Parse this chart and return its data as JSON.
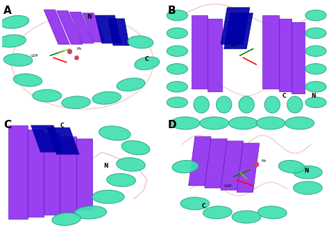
{
  "figure_width": 4.74,
  "figure_height": 3.32,
  "dpi": 100,
  "panels": [
    "A",
    "B",
    "C",
    "D"
  ],
  "background_color": "#ffffff",
  "panel_label_fontsize": 11,
  "panel_label_fontweight": "bold",
  "panel_label_color": "black",
  "helix_color": "#40e0b0",
  "helix_edge": "#20a080",
  "purple_color": "#9030f0",
  "purple_edge": "#6010c0",
  "blue_color": "#0000aa",
  "blue_edge": "#000088",
  "loop_color": "#e8a0a0",
  "mn_color": "#cc4466",
  "panel_bg": "#f5f0f0"
}
